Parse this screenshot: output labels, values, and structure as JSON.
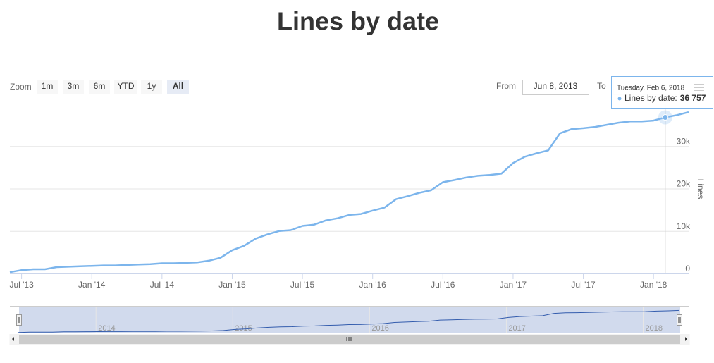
{
  "chart_data": {
    "type": "line",
    "title": "Lines by date",
    "y_axis_label": "Lines",
    "range_selector": {
      "zoom_label": "Zoom",
      "buttons": [
        "1m",
        "3m",
        "6m",
        "YTD",
        "1y",
        "All"
      ],
      "selected": 5,
      "from_label": "From",
      "from_value": "Jun 8, 2013",
      "to_label": "To"
    },
    "x": [
      "2013-06",
      "2013-07",
      "2013-08",
      "2013-09",
      "2013-10",
      "2013-11",
      "2013-12",
      "2014-01",
      "2014-02",
      "2014-03",
      "2014-04",
      "2014-05",
      "2014-06",
      "2014-07",
      "2014-08",
      "2014-09",
      "2014-10",
      "2014-11",
      "2014-12",
      "2015-01",
      "2015-02",
      "2015-03",
      "2015-04",
      "2015-05",
      "2015-06",
      "2015-07",
      "2015-08",
      "2015-09",
      "2015-10",
      "2015-11",
      "2015-12",
      "2016-01",
      "2016-02",
      "2016-03",
      "2016-04",
      "2016-05",
      "2016-06",
      "2016-07",
      "2016-08",
      "2016-09",
      "2016-10",
      "2016-11",
      "2016-12",
      "2017-01",
      "2017-02",
      "2017-03",
      "2017-04",
      "2017-05",
      "2017-06",
      "2017-07",
      "2017-08",
      "2017-09",
      "2017-10",
      "2017-11",
      "2017-12",
      "2018-01",
      "2018-02",
      "2018-03",
      "2018-04"
    ],
    "series": [
      {
        "name": "Lines by date",
        "color": "#7cb5ec",
        "values": [
          300,
          800,
          1000,
          1000,
          1500,
          1600,
          1700,
          1800,
          1900,
          1900,
          2000,
          2100,
          2200,
          2400,
          2400,
          2500,
          2600,
          3000,
          3700,
          5500,
          6500,
          8200,
          9200,
          10000,
          10200,
          11200,
          11500,
          12500,
          13000,
          13800,
          14000,
          14800,
          15500,
          17500,
          18200,
          19000,
          19600,
          21500,
          22000,
          22600,
          23000,
          23200,
          23500,
          26000,
          27500,
          28300,
          29000,
          33000,
          34000,
          34200,
          34500,
          35000,
          35500,
          35800,
          35800,
          36000,
          36757,
          37300,
          38000
        ]
      }
    ],
    "xlim": [
      "2013-06",
      "2018-04"
    ],
    "xticks": [
      {
        "value": "2013-07",
        "label": "Jul '13"
      },
      {
        "value": "2014-01",
        "label": "Jan '14"
      },
      {
        "value": "2014-07",
        "label": "Jul '14"
      },
      {
        "value": "2015-01",
        "label": "Jan '15"
      },
      {
        "value": "2015-07",
        "label": "Jul '15"
      },
      {
        "value": "2016-01",
        "label": "Jan '16"
      },
      {
        "value": "2016-07",
        "label": "Jul '16"
      },
      {
        "value": "2017-01",
        "label": "Jan '17"
      },
      {
        "value": "2017-07",
        "label": "Jul '17"
      },
      {
        "value": "2018-01",
        "label": "Jan '18"
      }
    ],
    "ylim": [
      0,
      40000
    ],
    "yticks": [
      0,
      {
        "value": 10000,
        "label": "10k"
      },
      {
        "value": 20000,
        "label": "20k"
      },
      {
        "value": 30000,
        "label": "30k"
      }
    ],
    "grid": true,
    "tooltip": {
      "index": 56,
      "date": "Tuesday, Feb 6, 2018",
      "label": "Lines by date:",
      "value_label": "36 757"
    },
    "navigator": {
      "xticks": [
        {
          "value": "2014-01",
          "label": "2014"
        },
        {
          "value": "2015-01",
          "label": "2015"
        },
        {
          "value": "2016-01",
          "label": "2016"
        },
        {
          "value": "2017-01",
          "label": "2017"
        },
        {
          "value": "2018-01",
          "label": "2018"
        }
      ]
    }
  }
}
